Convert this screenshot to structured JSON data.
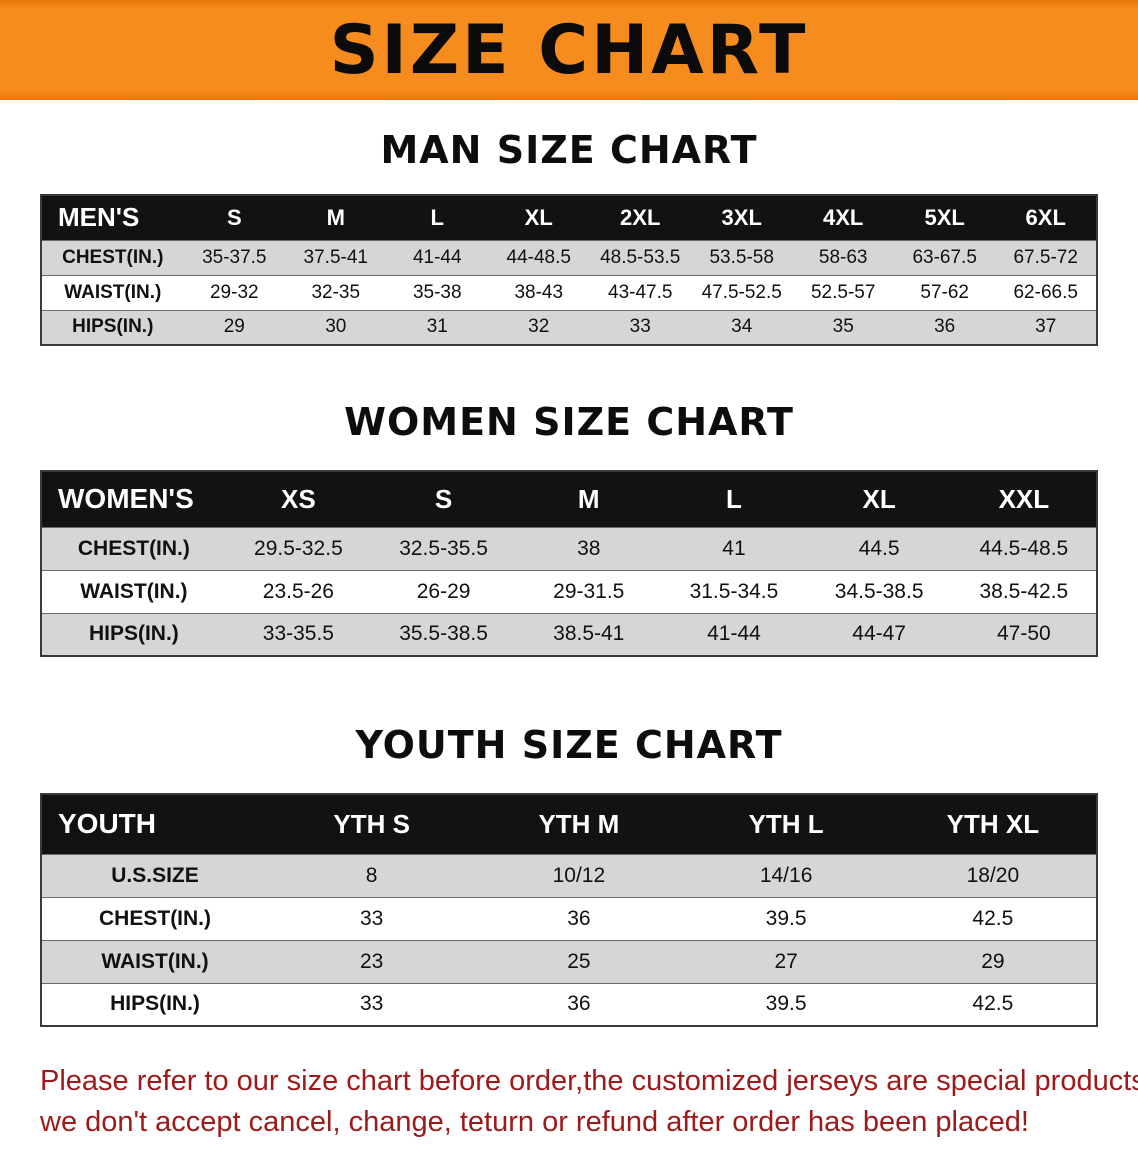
{
  "colors": {
    "banner-bg": "#f78c1e",
    "banner-bg-edge": "#e8760c",
    "header-bg": "#121212",
    "header-text": "#ffffff",
    "stripe-bg": "#d6d6d6",
    "disclaimer-text": "#9e1a1a",
    "text": "#111111"
  },
  "banner": {
    "title": "SIZE CHART"
  },
  "sections": [
    {
      "id": "men",
      "heading": "MAN SIZE CHART",
      "table": {
        "header": [
          "MEN'S",
          "S",
          "M",
          "L",
          "XL",
          "2XL",
          "3XL",
          "4XL",
          "5XL",
          "6XL"
        ],
        "rows": [
          [
            "CHEST(IN.)",
            "35-37.5",
            "37.5-41",
            "41-44",
            "44-48.5",
            "48.5-53.5",
            "53.5-58",
            "58-63",
            "63-67.5",
            "67.5-72"
          ],
          [
            "WAIST(IN.)",
            "29-32",
            "32-35",
            "35-38",
            "38-43",
            "43-47.5",
            "47.5-52.5",
            "52.5-57",
            "57-62",
            "62-66.5"
          ],
          [
            "HIPS(IN.)",
            "29",
            "30",
            "31",
            "32",
            "33",
            "34",
            "35",
            "36",
            "37"
          ]
        ]
      }
    },
    {
      "id": "women",
      "heading": "WOMEN SIZE CHART",
      "table": {
        "header": [
          "WOMEN'S",
          "XS",
          "S",
          "M",
          "L",
          "XL",
          "XXL"
        ],
        "rows": [
          [
            "CHEST(IN.)",
            "29.5-32.5",
            "32.5-35.5",
            "38",
            "41",
            "44.5",
            "44.5-48.5"
          ],
          [
            "WAIST(IN.)",
            "23.5-26",
            "26-29",
            "29-31.5",
            "31.5-34.5",
            "34.5-38.5",
            "38.5-42.5"
          ],
          [
            "HIPS(IN.)",
            "33-35.5",
            "35.5-38.5",
            "38.5-41",
            "41-44",
            "44-47",
            "47-50"
          ]
        ]
      }
    },
    {
      "id": "youth",
      "heading": "YOUTH SIZE CHART",
      "table": {
        "header": [
          "YOUTH",
          "YTH S",
          "YTH M",
          "YTH L",
          "YTH XL"
        ],
        "rows": [
          [
            "U.S.SIZE",
            "8",
            "10/12",
            "14/16",
            "18/20"
          ],
          [
            "CHEST(IN.)",
            "33",
            "36",
            "39.5",
            "42.5"
          ],
          [
            "WAIST(IN.)",
            "23",
            "25",
            "27",
            "29"
          ],
          [
            "HIPS(IN.)",
            "33",
            "36",
            "39.5",
            "42.5"
          ]
        ]
      }
    }
  ],
  "disclaimer": {
    "line1": "Please refer to our size chart before order,the customized jerseys are special products,",
    "line2": "we don't accept cancel, change, teturn or refund after order has been placed!"
  }
}
